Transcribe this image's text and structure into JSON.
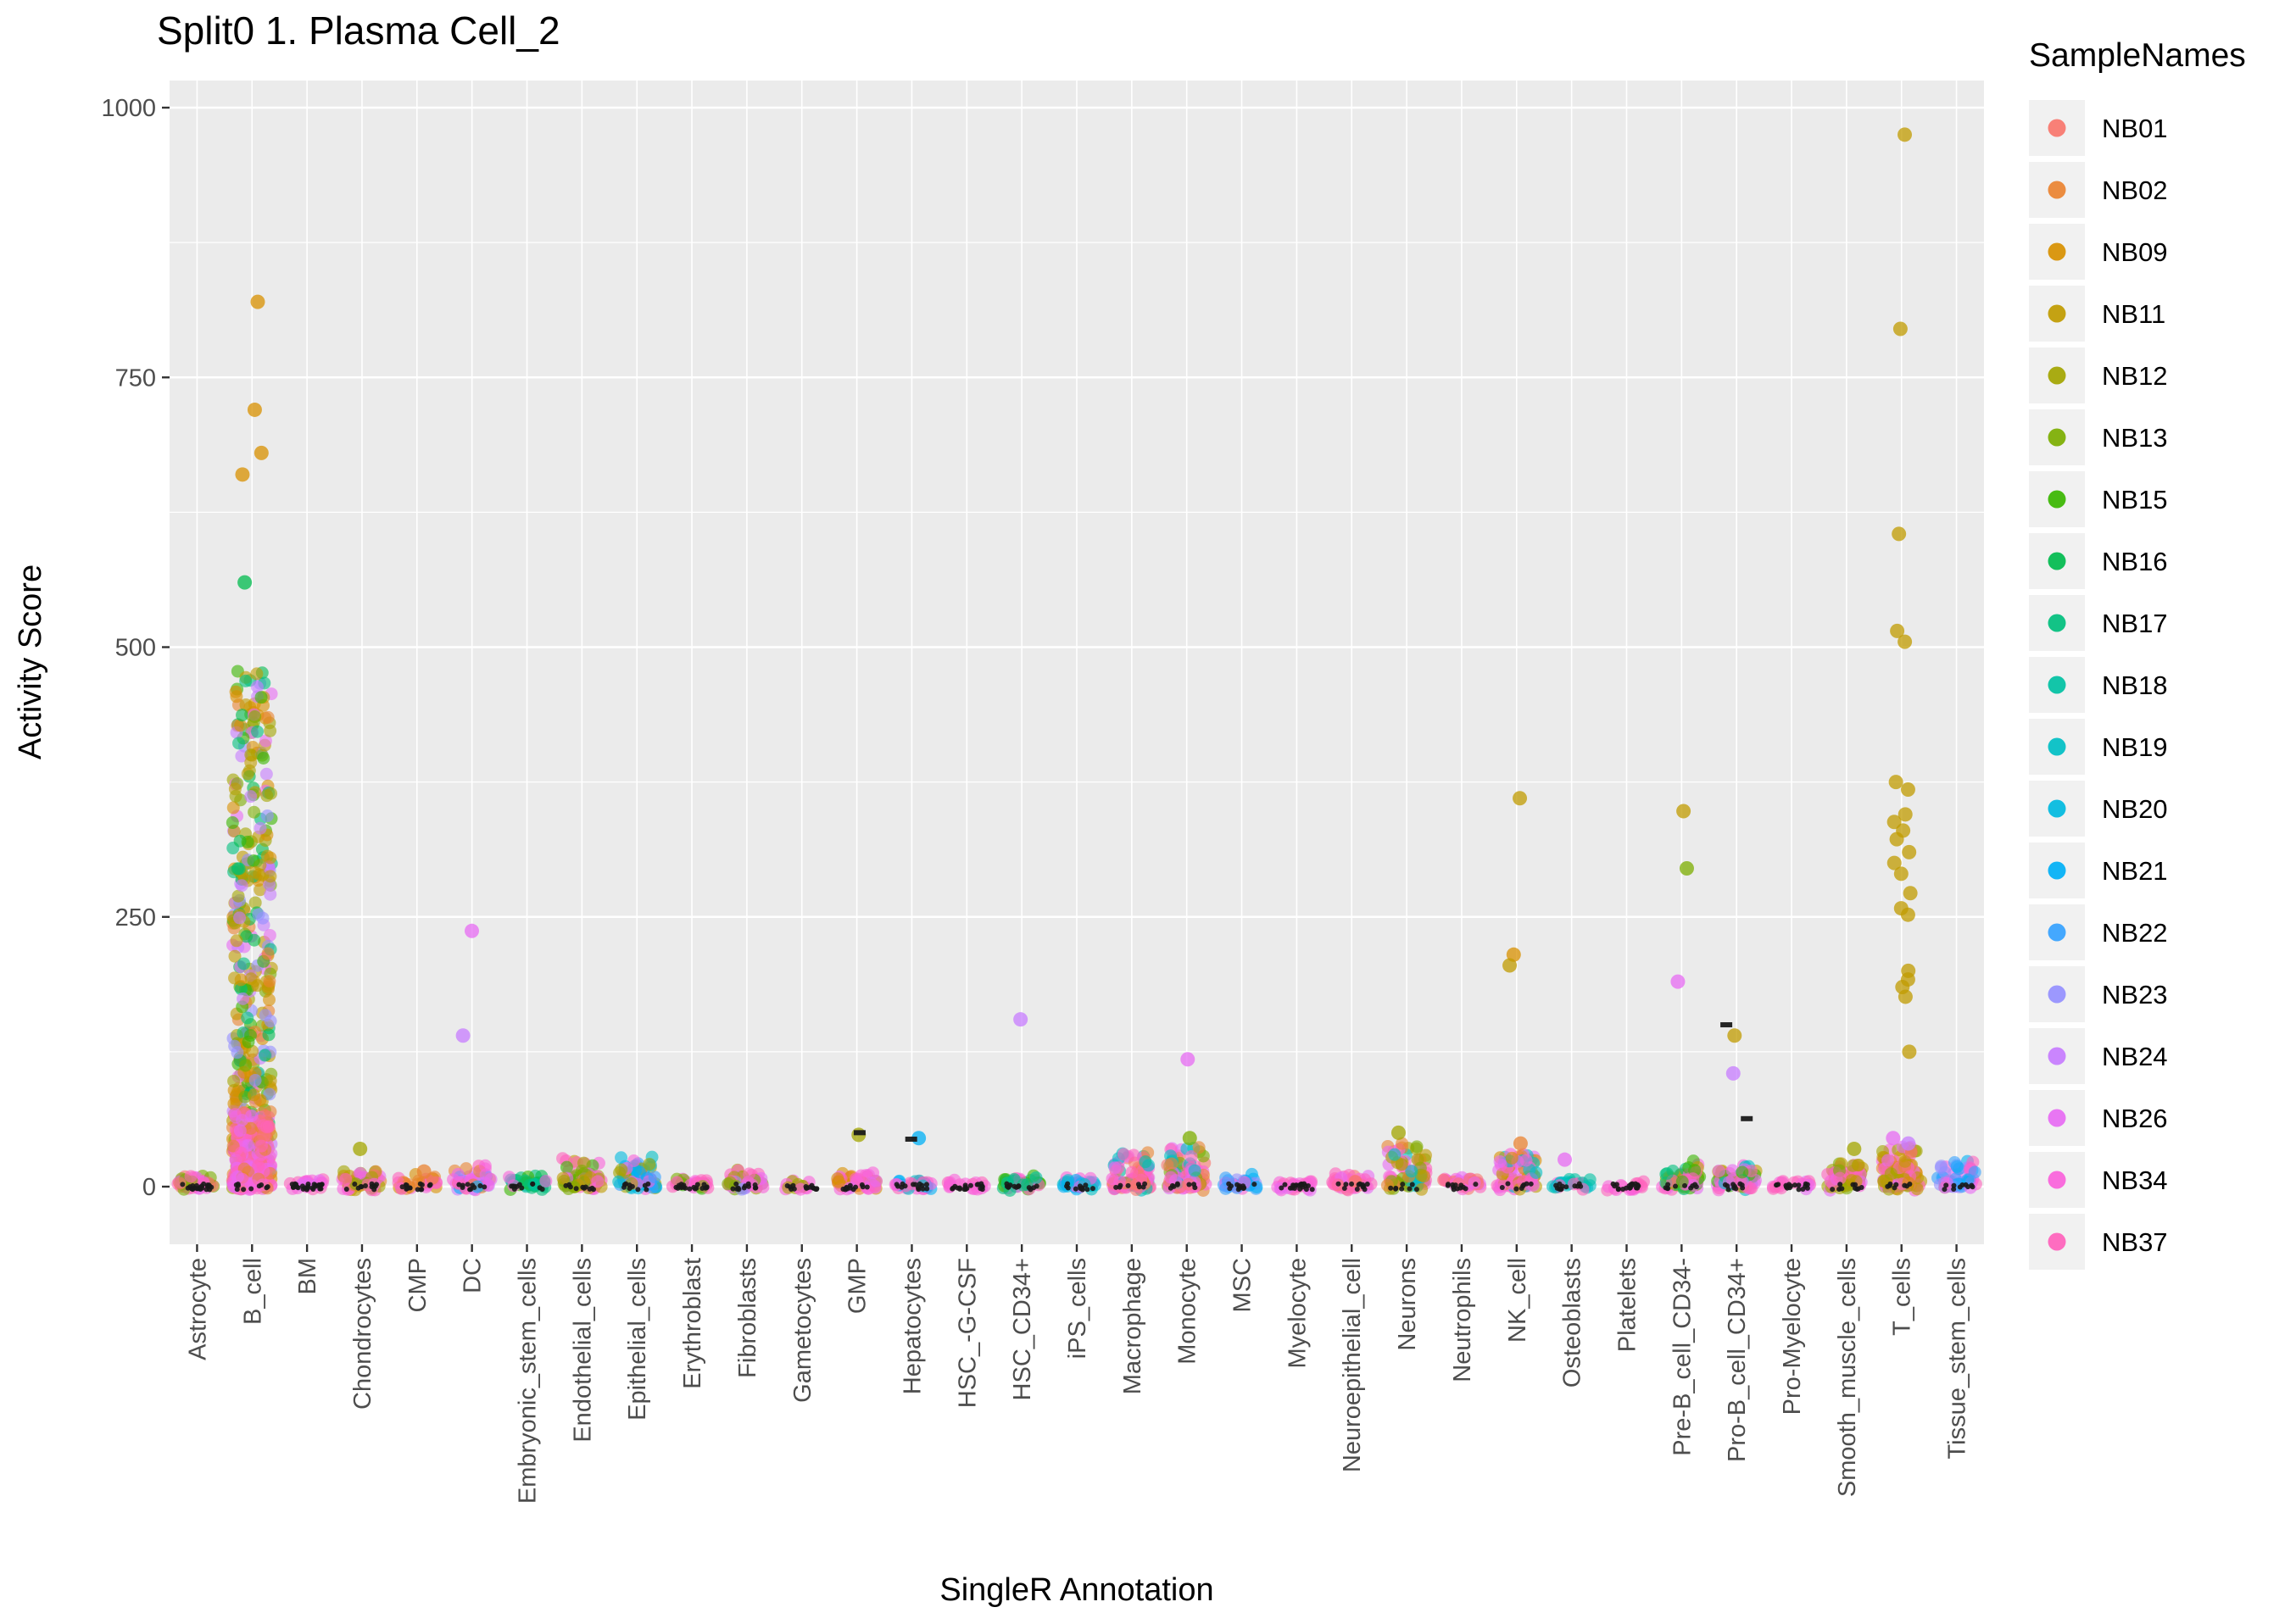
{
  "title": "Split0 1. Plasma Cell_2",
  "axes": {
    "x_title": "SingleR Annotation",
    "y_title": "Activity Score",
    "y_ticks": [
      0,
      250,
      500,
      750,
      1000
    ],
    "y_minor_ticks": [
      125,
      375,
      625,
      875
    ]
  },
  "legend": {
    "title": "SampleNames",
    "items": [
      {
        "label": "NB01",
        "color": "#F8766D"
      },
      {
        "label": "NB02",
        "color": "#EA8331"
      },
      {
        "label": "NB09",
        "color": "#D89000"
      },
      {
        "label": "NB11",
        "color": "#C09B00"
      },
      {
        "label": "NB12",
        "color": "#A3A500"
      },
      {
        "label": "NB13",
        "color": "#7CAE00"
      },
      {
        "label": "NB15",
        "color": "#39B600"
      },
      {
        "label": "NB16",
        "color": "#00BB4E"
      },
      {
        "label": "NB17",
        "color": "#00BF7D"
      },
      {
        "label": "NB18",
        "color": "#00C1A3"
      },
      {
        "label": "NB19",
        "color": "#00BFC4"
      },
      {
        "label": "NB20",
        "color": "#00BAE0"
      },
      {
        "label": "NB21",
        "color": "#00B0F6"
      },
      {
        "label": "NB22",
        "color": "#35A2FF"
      },
      {
        "label": "NB23",
        "color": "#9590FF"
      },
      {
        "label": "NB24",
        "color": "#C77CFF"
      },
      {
        "label": "NB26",
        "color": "#E76BF3"
      },
      {
        "label": "NB34",
        "color": "#FA62DB"
      },
      {
        "label": "NB37",
        "color": "#FF62BC"
      }
    ]
  },
  "style": {
    "panel_bg": "#EBEBEB",
    "grid_color": "#FFFFFF",
    "tick_mark_color": "#333333",
    "tick_label_color": "#4D4D4D",
    "dark_point_color": "#1A1A1A"
  },
  "chart_data": {
    "type": "scatter",
    "subtype": "jittered_strip_plot",
    "title": "Split0 1. Plasma Cell_2",
    "xlabel": "SingleR Annotation",
    "ylabel": "Activity Score",
    "ylim": [
      0,
      1000
    ],
    "grid": true,
    "legend_position": "right",
    "legend_title": "SampleNames",
    "categories": [
      {
        "name": "Astrocyte",
        "clusters": [
          {
            "n": 50,
            "max": 10,
            "skew": 2,
            "samples": [
              "NB34",
              "NB37",
              "NB26",
              "NB01",
              "NB13"
            ]
          }
        ],
        "dark": 22,
        "outliers": []
      },
      {
        "name": "B_cell",
        "clusters": [
          {
            "n": 400,
            "max": 480,
            "skew": 1.35,
            "samples": [
              "NB09",
              "NB09",
              "NB11",
              "NB11",
              "NB12",
              "NB13",
              "NB15",
              "NB16",
              "NB17",
              "NB24",
              "NB23",
              "NB02",
              "NB26"
            ]
          },
          {
            "n": 200,
            "max": 70,
            "skew": 2.2,
            "samples": [
              "NB34",
              "NB37",
              "NB26",
              "NB01",
              "NB02"
            ]
          }
        ],
        "dark": 10,
        "outliers": [
          {
            "y": 820,
            "sample": "NB09"
          },
          {
            "y": 720,
            "sample": "NB09"
          },
          {
            "y": 680,
            "sample": "NB09"
          },
          {
            "y": 660,
            "sample": "NB09"
          },
          {
            "y": 560,
            "sample": "NB16"
          }
        ]
      },
      {
        "name": "BM",
        "clusters": [
          {
            "n": 22,
            "max": 6,
            "skew": 2,
            "samples": [
              "NB34",
              "NB37",
              "NB26"
            ]
          }
        ],
        "dark": 26,
        "outliers": []
      },
      {
        "name": "Chondrocytes",
        "clusters": [
          {
            "n": 55,
            "max": 16,
            "skew": 2,
            "samples": [
              "NB11",
              "NB12",
              "NB34",
              "NB37",
              "NB26",
              "NB13",
              "NB02"
            ]
          }
        ],
        "dark": 12,
        "outliers": [
          {
            "y": 35,
            "sample": "NB12"
          }
        ]
      },
      {
        "name": "CMP",
        "clusters": [
          {
            "n": 30,
            "max": 9,
            "skew": 2,
            "samples": [
              "NB34",
              "NB37",
              "NB02",
              "NB09"
            ]
          }
        ],
        "dark": 14,
        "outliers": [
          {
            "y": 14,
            "sample": "NB02"
          }
        ]
      },
      {
        "name": "DC",
        "clusters": [
          {
            "n": 48,
            "max": 18,
            "skew": 2,
            "samples": [
              "NB34",
              "NB37",
              "NB26",
              "NB24",
              "NB21",
              "NB02"
            ]
          }
        ],
        "dark": 10,
        "outliers": [
          {
            "y": 237,
            "sample": "NB26"
          },
          {
            "y": 140,
            "sample": "NB24"
          }
        ]
      },
      {
        "name": "Embryonic_stem_cells",
        "clusters": [
          {
            "n": 36,
            "max": 9,
            "skew": 2,
            "samples": [
              "NB17",
              "NB18",
              "NB16",
              "NB15",
              "NB34"
            ]
          }
        ],
        "dark": 12,
        "outliers": []
      },
      {
        "name": "Endothelial_cells",
        "clusters": [
          {
            "n": 65,
            "max": 24,
            "skew": 2,
            "samples": [
              "NB12",
              "NB13",
              "NB11",
              "NB15",
              "NB34",
              "NB37",
              "NB26"
            ]
          }
        ],
        "dark": 10,
        "outliers": []
      },
      {
        "name": "Epithelial_cells",
        "clusters": [
          {
            "n": 65,
            "max": 28,
            "skew": 2,
            "samples": [
              "NB21",
              "NB20",
              "NB19",
              "NB22",
              "NB34",
              "NB12"
            ]
          }
        ],
        "dark": 10,
        "outliers": []
      },
      {
        "name": "Erythroblast",
        "clusters": [
          {
            "n": 28,
            "max": 6,
            "skew": 2,
            "samples": [
              "NB34",
              "NB37",
              "NB15",
              "NB13"
            ]
          }
        ],
        "dark": 20,
        "outliers": []
      },
      {
        "name": "Fibroblasts",
        "clusters": [
          {
            "n": 52,
            "max": 13,
            "skew": 2,
            "samples": [
              "NB13",
              "NB12",
              "NB34",
              "NB37",
              "NB26",
              "NB23"
            ]
          }
        ],
        "dark": 12,
        "outliers": []
      },
      {
        "name": "Gametocytes",
        "clusters": [
          {
            "n": 14,
            "max": 4,
            "skew": 2,
            "samples": [
              "NB34",
              "NB12"
            ]
          }
        ],
        "dark": 16,
        "outliers": []
      },
      {
        "name": "GMP",
        "clusters": [
          {
            "n": 45,
            "max": 12,
            "skew": 2,
            "samples": [
              "NB34",
              "NB37",
              "NB26",
              "NB02",
              "NB09"
            ]
          }
        ],
        "dark": 12,
        "outliers": [
          {
            "y": 48,
            "sample": "NB12"
          },
          {
            "y": 50,
            "sample": "dark"
          }
        ]
      },
      {
        "name": "Hepatocytes",
        "clusters": [
          {
            "n": 34,
            "max": 7,
            "skew": 2,
            "samples": [
              "NB34",
              "NB37",
              "NB21",
              "NB19"
            ]
          }
        ],
        "dark": 14,
        "outliers": [
          {
            "y": 45,
            "sample": "NB21"
          },
          {
            "y": 44,
            "sample": "dark"
          }
        ]
      },
      {
        "name": "HSC_-G-CSF",
        "clusters": [
          {
            "n": 16,
            "max": 4,
            "skew": 2,
            "samples": [
              "NB34",
              "NB37"
            ]
          }
        ],
        "dark": 20,
        "outliers": []
      },
      {
        "name": "HSC_CD34+",
        "clusters": [
          {
            "n": 36,
            "max": 8,
            "skew": 2,
            "samples": [
              "NB17",
              "NB18",
              "NB15",
              "NB34",
              "NB37"
            ]
          }
        ],
        "dark": 14,
        "outliers": [
          {
            "y": 155,
            "sample": "NB24"
          }
        ]
      },
      {
        "name": "iPS_cells",
        "clusters": [
          {
            "n": 30,
            "max": 7,
            "skew": 2,
            "samples": [
              "NB21",
              "NB20",
              "NB19",
              "NB34"
            ]
          }
        ],
        "dark": 12,
        "outliers": []
      },
      {
        "name": "Macrophage",
        "clusters": [
          {
            "n": 85,
            "max": 30,
            "skew": 2.2,
            "samples": [
              "NB34",
              "NB37",
              "NB26",
              "NB02",
              "NB01",
              "NB18",
              "NB19"
            ]
          }
        ],
        "dark": 8,
        "outliers": []
      },
      {
        "name": "Monocyte",
        "clusters": [
          {
            "n": 95,
            "max": 35,
            "skew": 2.2,
            "samples": [
              "NB34",
              "NB37",
              "NB26",
              "NB02",
              "NB01",
              "NB13",
              "NB19"
            ]
          }
        ],
        "dark": 8,
        "outliers": [
          {
            "y": 118,
            "sample": "NB26"
          },
          {
            "y": 45,
            "sample": "NB13"
          }
        ]
      },
      {
        "name": "MSC",
        "clusters": [
          {
            "n": 30,
            "max": 9,
            "skew": 2,
            "samples": [
              "NB21",
              "NB22",
              "NB23",
              "NB34"
            ]
          }
        ],
        "dark": 12,
        "outliers": []
      },
      {
        "name": "Myelocyte",
        "clusters": [
          {
            "n": 24,
            "max": 5,
            "skew": 2,
            "samples": [
              "NB34",
              "NB37",
              "NB26"
            ]
          }
        ],
        "dark": 20,
        "outliers": []
      },
      {
        "name": "Neuroepithelial_cell",
        "clusters": [
          {
            "n": 36,
            "max": 11,
            "skew": 2,
            "samples": [
              "NB34",
              "NB37",
              "NB26",
              "NB01"
            ]
          }
        ],
        "dark": 12,
        "outliers": []
      },
      {
        "name": "Neurons",
        "clusters": [
          {
            "n": 75,
            "max": 38,
            "skew": 2,
            "samples": [
              "NB12",
              "NB11",
              "NB34",
              "NB37",
              "NB26",
              "NB13",
              "NB02",
              "NB19"
            ]
          }
        ],
        "dark": 8,
        "outliers": [
          {
            "y": 50,
            "sample": "NB12"
          }
        ]
      },
      {
        "name": "Neutrophils",
        "clusters": [
          {
            "n": 34,
            "max": 9,
            "skew": 2,
            "samples": [
              "NB34",
              "NB37",
              "NB26",
              "NB01"
            ]
          }
        ],
        "dark": 12,
        "outliers": []
      },
      {
        "name": "NK_cell",
        "clusters": [
          {
            "n": 75,
            "max": 30,
            "skew": 2,
            "samples": [
              "NB34",
              "NB37",
              "NB26",
              "NB02",
              "NB09",
              "NB11",
              "NB19"
            ]
          }
        ],
        "dark": 8,
        "outliers": [
          {
            "y": 360,
            "sample": "NB11"
          },
          {
            "y": 215,
            "sample": "NB09"
          },
          {
            "y": 205,
            "sample": "NB11"
          },
          {
            "y": 40,
            "sample": "NB02"
          }
        ]
      },
      {
        "name": "Osteoblasts",
        "clusters": [
          {
            "n": 28,
            "max": 8,
            "skew": 2,
            "samples": [
              "NB34",
              "NB18",
              "NB19",
              "NB37"
            ]
          }
        ],
        "dark": 12,
        "outliers": [
          {
            "y": 25,
            "sample": "NB26"
          }
        ]
      },
      {
        "name": "Platelets",
        "clusters": [
          {
            "n": 18,
            "max": 4,
            "skew": 2,
            "samples": [
              "NB34",
              "NB37"
            ]
          }
        ],
        "dark": 18,
        "outliers": []
      },
      {
        "name": "Pre-B_cell_CD34-",
        "clusters": [
          {
            "n": 60,
            "max": 22,
            "skew": 2,
            "samples": [
              "NB34",
              "NB37",
              "NB26",
              "NB11",
              "NB12",
              "NB15",
              "NB17"
            ]
          }
        ],
        "dark": 10,
        "outliers": [
          {
            "y": 348,
            "sample": "NB11"
          },
          {
            "y": 295,
            "sample": "NB13"
          },
          {
            "y": 190,
            "sample": "NB26"
          }
        ]
      },
      {
        "name": "Pro-B_cell_CD34+",
        "clusters": [
          {
            "n": 55,
            "max": 20,
            "skew": 2,
            "samples": [
              "NB34",
              "NB37",
              "NB26",
              "NB11",
              "NB15",
              "NB19"
            ]
          }
        ],
        "dark": 10,
        "outliers": [
          {
            "y": 140,
            "sample": "NB11"
          },
          {
            "y": 105,
            "sample": "NB24"
          },
          {
            "y": 150,
            "sample": "dark"
          },
          {
            "y": 63,
            "sample": "dark"
          }
        ]
      },
      {
        "name": "Pro-Myelocyte",
        "clusters": [
          {
            "n": 18,
            "max": 4,
            "skew": 2,
            "samples": [
              "NB34",
              "NB37",
              "NB26"
            ]
          }
        ],
        "dark": 18,
        "outliers": []
      },
      {
        "name": "Smooth_muscle_cells",
        "clusters": [
          {
            "n": 60,
            "max": 22,
            "skew": 2,
            "samples": [
              "NB12",
              "NB11",
              "NB13",
              "NB34",
              "NB37",
              "NB26"
            ]
          }
        ],
        "dark": 10,
        "outliers": [
          {
            "y": 35,
            "sample": "NB12"
          }
        ]
      },
      {
        "name": "T_cells",
        "clusters": [
          {
            "n": 110,
            "max": 35,
            "skew": 2,
            "samples": [
              "NB34",
              "NB37",
              "NB26",
              "NB11",
              "NB12",
              "NB09",
              "NB02"
            ]
          }
        ],
        "dark": 8,
        "outliers": [
          {
            "y": 975,
            "sample": "NB11"
          },
          {
            "y": 795,
            "sample": "NB11"
          },
          {
            "y": 605,
            "sample": "NB11"
          },
          {
            "y": 515,
            "sample": "NB11"
          },
          {
            "y": 505,
            "sample": "NB11"
          },
          {
            "y": 375,
            "sample": "NB11"
          },
          {
            "y": 368,
            "sample": "NB11"
          },
          {
            "y": 345,
            "sample": "NB11"
          },
          {
            "y": 338,
            "sample": "NB11"
          },
          {
            "y": 330,
            "sample": "NB11"
          },
          {
            "y": 322,
            "sample": "NB11"
          },
          {
            "y": 310,
            "sample": "NB11"
          },
          {
            "y": 300,
            "sample": "NB11"
          },
          {
            "y": 290,
            "sample": "NB11"
          },
          {
            "y": 272,
            "sample": "NB11"
          },
          {
            "y": 258,
            "sample": "NB11"
          },
          {
            "y": 252,
            "sample": "NB11"
          },
          {
            "y": 200,
            "sample": "NB11"
          },
          {
            "y": 192,
            "sample": "NB11"
          },
          {
            "y": 185,
            "sample": "NB11"
          },
          {
            "y": 176,
            "sample": "NB11"
          },
          {
            "y": 125,
            "sample": "NB11"
          },
          {
            "y": 45,
            "sample": "NB26"
          },
          {
            "y": 40,
            "sample": "NB24"
          }
        ]
      },
      {
        "name": "Tissue_stem_cells",
        "clusters": [
          {
            "n": 55,
            "max": 25,
            "skew": 2,
            "samples": [
              "NB22",
              "NB23",
              "NB21",
              "NB34",
              "NB37",
              "NB26"
            ]
          }
        ],
        "dark": 10,
        "outliers": []
      }
    ]
  }
}
